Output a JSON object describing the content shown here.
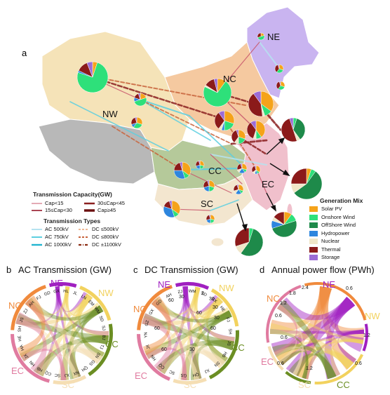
{
  "panels": {
    "a": {
      "letter": "a"
    },
    "b": {
      "letter": "b",
      "title": "AC Transmission (GW)"
    },
    "c": {
      "letter": "c",
      "title": "DC Transmission (GW)"
    },
    "d": {
      "letter": "d",
      "title": "Annual power flow (PWh)"
    }
  },
  "map_regions": {
    "ne": "NE",
    "nc": "NC",
    "nw": "NW",
    "cc": "CC",
    "ec": "EC",
    "sc": "SC"
  },
  "capacity_legend": {
    "title": "Transmission Capacity(GW)",
    "items": [
      "Cap<15",
      "30≤Cap<45",
      "15≤Cap<30",
      "Cap≥45"
    ]
  },
  "types_legend": {
    "title": "Transmission Types",
    "items": [
      "AC 500kV",
      "DC ≤500kV",
      "AC 750kV",
      "DC ≤800kV",
      "AC 1000kV",
      "DC ±1100kV"
    ]
  },
  "generation_mix": {
    "title": "Generation Mix",
    "items": [
      {
        "label": "Solar PV",
        "color": "#F5A31A"
      },
      {
        "label": "Onshore Wind",
        "color": "#2EE07A"
      },
      {
        "label": "OffShore Wind",
        "color": "#1E8A4A"
      },
      {
        "label": "Hydropower",
        "color": "#2E86DE"
      },
      {
        "label": "Nuclear",
        "color": "#F0E6C8"
      },
      {
        "label": "Thermal",
        "color": "#8B1A1A"
      },
      {
        "label": "Storage",
        "color": "#9B6BD6"
      }
    ]
  },
  "chord_b": {
    "groups": [
      "NE",
      "NW",
      "CC",
      "SC",
      "EC",
      "NC"
    ],
    "province_labels": [
      "HL",
      "JL",
      "LN",
      "EM",
      "WM",
      "SD",
      "SJ",
      "BJ",
      "TJ",
      "SN",
      "GS",
      "QH",
      "NX",
      "XJ",
      "SC",
      "CQ",
      "HB",
      "HN",
      "JX",
      "HA",
      "HE",
      "SH",
      "JS",
      "ZJ",
      "AH",
      "FJ",
      "GD",
      "GX"
    ]
  },
  "chord_c": {
    "groups": [
      "NE",
      "NW",
      "CC",
      "SC",
      "EC",
      "NC"
    ],
    "province_labels": [
      "WM",
      "SD",
      "SX",
      "HE",
      "FJ",
      "SH",
      "JS",
      "HB",
      "SN",
      "XJ",
      "QH",
      "GS",
      "SC",
      "CQ",
      "HN",
      "JX",
      "YN",
      "GZ",
      "GX",
      "GD",
      "AH",
      "ZJ"
    ],
    "tick_labels": [
      "2",
      "30",
      "30",
      "30",
      "60",
      "60",
      "30",
      "60",
      "60",
      "60",
      "30"
    ]
  },
  "chord_d": {
    "groups": [
      "NC",
      "NE",
      "NW",
      "CC",
      "SC",
      "EC"
    ],
    "tick_labels": [
      "0.6",
      "1.2",
      "1.8",
      "2.4",
      "0.6",
      "1.2",
      "0.6",
      "0.6",
      "1.2",
      "0.6"
    ]
  },
  "colors": {
    "ne": "#A020C0",
    "nw": "#F2D25E",
    "cc": "#6B8E23",
    "sc": "#F5DEB3",
    "ec": "#E07BA0",
    "nc": "#F08A3C"
  }
}
